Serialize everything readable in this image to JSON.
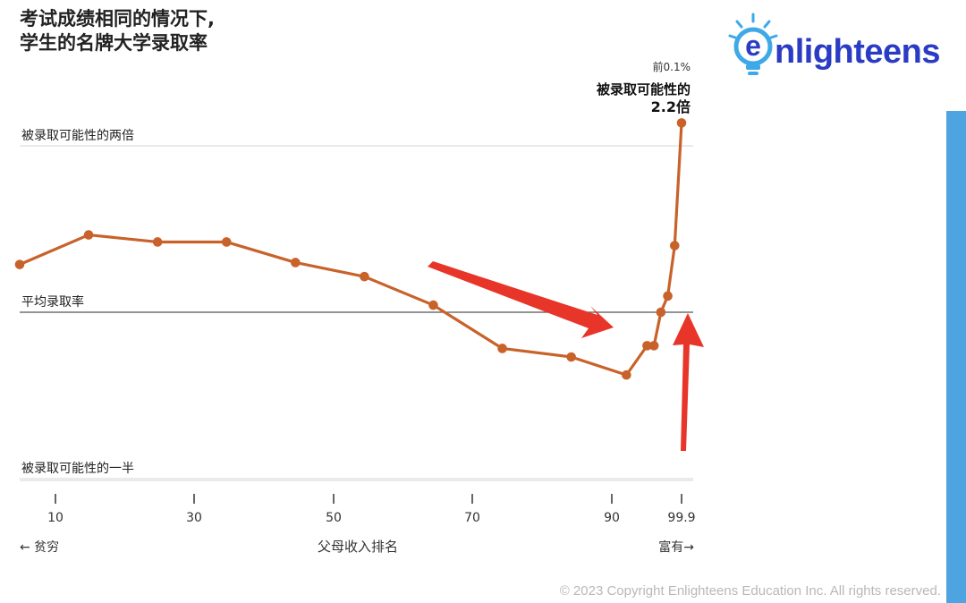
{
  "title": {
    "line1": "考试成绩相同的情况下,",
    "line2": "学生的名牌大学录取率"
  },
  "logo": {
    "text_e": "e",
    "text_rest": "nlighteens",
    "brand_color": "#2a3bc4",
    "accent_color": "#3fa9e8"
  },
  "copyright": "© 2023 Copyright Enlighteens Education Inc. All rights reserved.",
  "chart_data": {
    "type": "line",
    "title": "考试成绩相同的情况下,学生的名牌大学录取率",
    "xlabel": "父母收入排名",
    "x_left_label": "← 贫穷",
    "x_right_label": "富有→",
    "x_ticks": [
      "10",
      "30",
      "50",
      "70",
      "90",
      "99.9"
    ],
    "reference_lines": [
      {
        "label": "被录取可能性的两倍",
        "ratio": 2.0,
        "style": "light"
      },
      {
        "label": "平均录取率",
        "ratio": 1.0,
        "style": "dark"
      },
      {
        "label": "被录取可能性的一半",
        "ratio": 0.5,
        "style": "light"
      }
    ],
    "annotation": {
      "line1": "前0.1%",
      "line2": "被录取可能性的",
      "line3": "2.2倍"
    },
    "line_color": "#c8622a",
    "series": [
      {
        "points": [
          {
            "x": 0,
            "y": 1.22
          },
          {
            "x": 10,
            "y": 1.38
          },
          {
            "x": 20,
            "y": 1.34
          },
          {
            "x": 30,
            "y": 1.34
          },
          {
            "x": 40,
            "y": 1.23
          },
          {
            "x": 50,
            "y": 1.16
          },
          {
            "x": 60,
            "y": 1.03
          },
          {
            "x": 70,
            "y": 0.86
          },
          {
            "x": 80,
            "y": 0.83
          },
          {
            "x": 88,
            "y": 0.77
          },
          {
            "x": 91,
            "y": 0.87
          },
          {
            "x": 92,
            "y": 0.87
          },
          {
            "x": 93,
            "y": 1.0
          },
          {
            "x": 94,
            "y": 1.07
          },
          {
            "x": 95,
            "y": 1.32
          },
          {
            "x": 96,
            "y": 2.2
          }
        ]
      }
    ],
    "arrow_color": "#e8352a"
  }
}
